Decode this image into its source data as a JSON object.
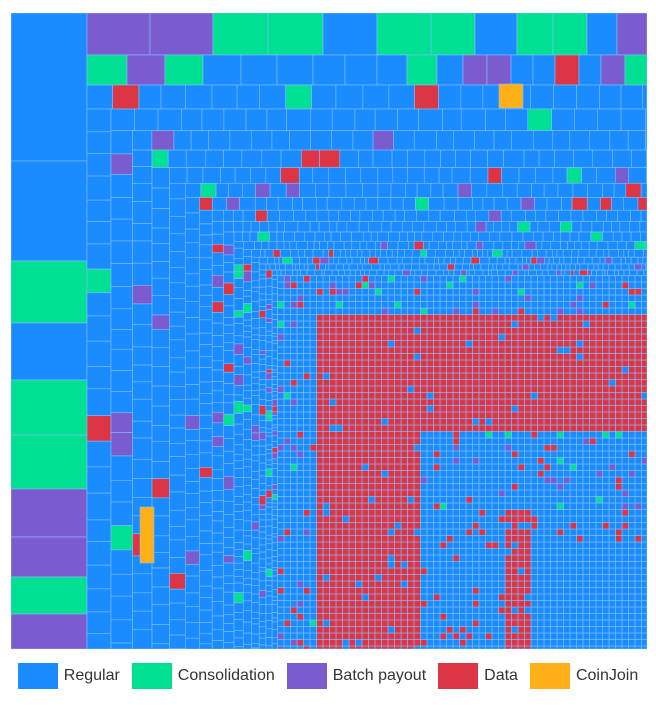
{
  "chart_data": {
    "type": "treemap",
    "title": "",
    "legend_position": "bottom-center",
    "categories": [
      {
        "key": "regular",
        "label": "Regular",
        "color": "#1a8cff"
      },
      {
        "key": "consolidation",
        "label": "Consolidation",
        "color": "#00e092"
      },
      {
        "key": "batch_payout",
        "label": "Batch payout",
        "color": "#7b5ccf"
      },
      {
        "key": "data",
        "label": "Data",
        "color": "#dc3545"
      },
      {
        "key": "coinjoin",
        "label": "CoinJoin",
        "color": "#ffb016"
      }
    ],
    "approx_share": {
      "regular": 0.56,
      "data": 0.31,
      "consolidation": 0.06,
      "batch_payout": 0.065,
      "coinjoin": 0.005
    },
    "tile_border_color": "#7fbfff"
  }
}
